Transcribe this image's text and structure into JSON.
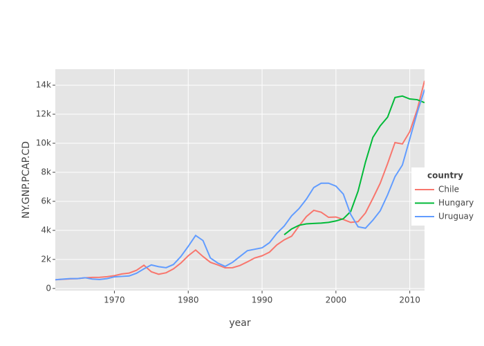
{
  "chart_data": {
    "type": "line",
    "x_label": "year",
    "y_label": "NY.GNP.PCAP.CD",
    "x": [
      1962,
      1963,
      1964,
      1965,
      1966,
      1967,
      1968,
      1969,
      1970,
      1971,
      1972,
      1973,
      1974,
      1975,
      1976,
      1977,
      1978,
      1979,
      1980,
      1981,
      1982,
      1983,
      1984,
      1985,
      1986,
      1987,
      1988,
      1989,
      1990,
      1991,
      1992,
      1993,
      1994,
      1995,
      1996,
      1997,
      1998,
      1999,
      2000,
      2001,
      2002,
      2003,
      2004,
      2005,
      2006,
      2007,
      2008,
      2009,
      2010,
      2011,
      2012
    ],
    "series": [
      {
        "name": "Chile",
        "color": "#F8766D",
        "values": [
          600,
          630,
          660,
          680,
          730,
          760,
          770,
          810,
          880,
          1000,
          1060,
          1250,
          1600,
          1150,
          980,
          1080,
          1350,
          1750,
          2250,
          2650,
          2200,
          1800,
          1620,
          1420,
          1430,
          1580,
          1830,
          2100,
          2250,
          2500,
          3000,
          3350,
          3600,
          4300,
          4950,
          5380,
          5250,
          4900,
          4920,
          4750,
          4550,
          4600,
          5200,
          6200,
          7250,
          8600,
          10050,
          9950,
          10800,
          12300,
          14300
        ]
      },
      {
        "name": "Hungary",
        "color": "#00BA38",
        "values": [
          null,
          null,
          null,
          null,
          null,
          null,
          null,
          null,
          null,
          null,
          null,
          null,
          null,
          null,
          null,
          null,
          null,
          null,
          null,
          null,
          null,
          null,
          null,
          null,
          null,
          null,
          null,
          null,
          null,
          null,
          null,
          3700,
          4100,
          4350,
          4450,
          4480,
          4500,
          4550,
          4650,
          4800,
          5300,
          6700,
          8700,
          10400,
          11200,
          11800,
          13150,
          13250,
          13050,
          13000,
          12800
        ]
      },
      {
        "name": "Uruguay",
        "color": "#619CFF",
        "values": [
          600,
          640,
          680,
          680,
          740,
          650,
          620,
          680,
          800,
          830,
          860,
          1050,
          1350,
          1620,
          1500,
          1430,
          1650,
          2200,
          2900,
          3650,
          3300,
          2100,
          1750,
          1520,
          1800,
          2200,
          2600,
          2700,
          2800,
          3150,
          3800,
          4300,
          5000,
          5500,
          6150,
          6950,
          7250,
          7250,
          7050,
          6500,
          5100,
          4250,
          4150,
          4700,
          5350,
          6450,
          7700,
          8500,
          10300,
          12100,
          13700
        ]
      }
    ],
    "legend_title": "country",
    "xlim": [
      1962,
      2012
    ],
    "xticks": [
      1970,
      1980,
      1990,
      2000,
      2010
    ],
    "ylim": [
      -150,
      15100
    ],
    "yticks": [
      {
        "value": 0,
        "label": "0"
      },
      {
        "value": 2000,
        "label": "2k"
      },
      {
        "value": 4000,
        "label": "4k"
      },
      {
        "value": 6000,
        "label": "6k"
      },
      {
        "value": 8000,
        "label": "8k"
      },
      {
        "value": 10000,
        "label": "10k"
      },
      {
        "value": 12000,
        "label": "12k"
      },
      {
        "value": 14000,
        "label": "14k"
      }
    ],
    "grid": true
  }
}
